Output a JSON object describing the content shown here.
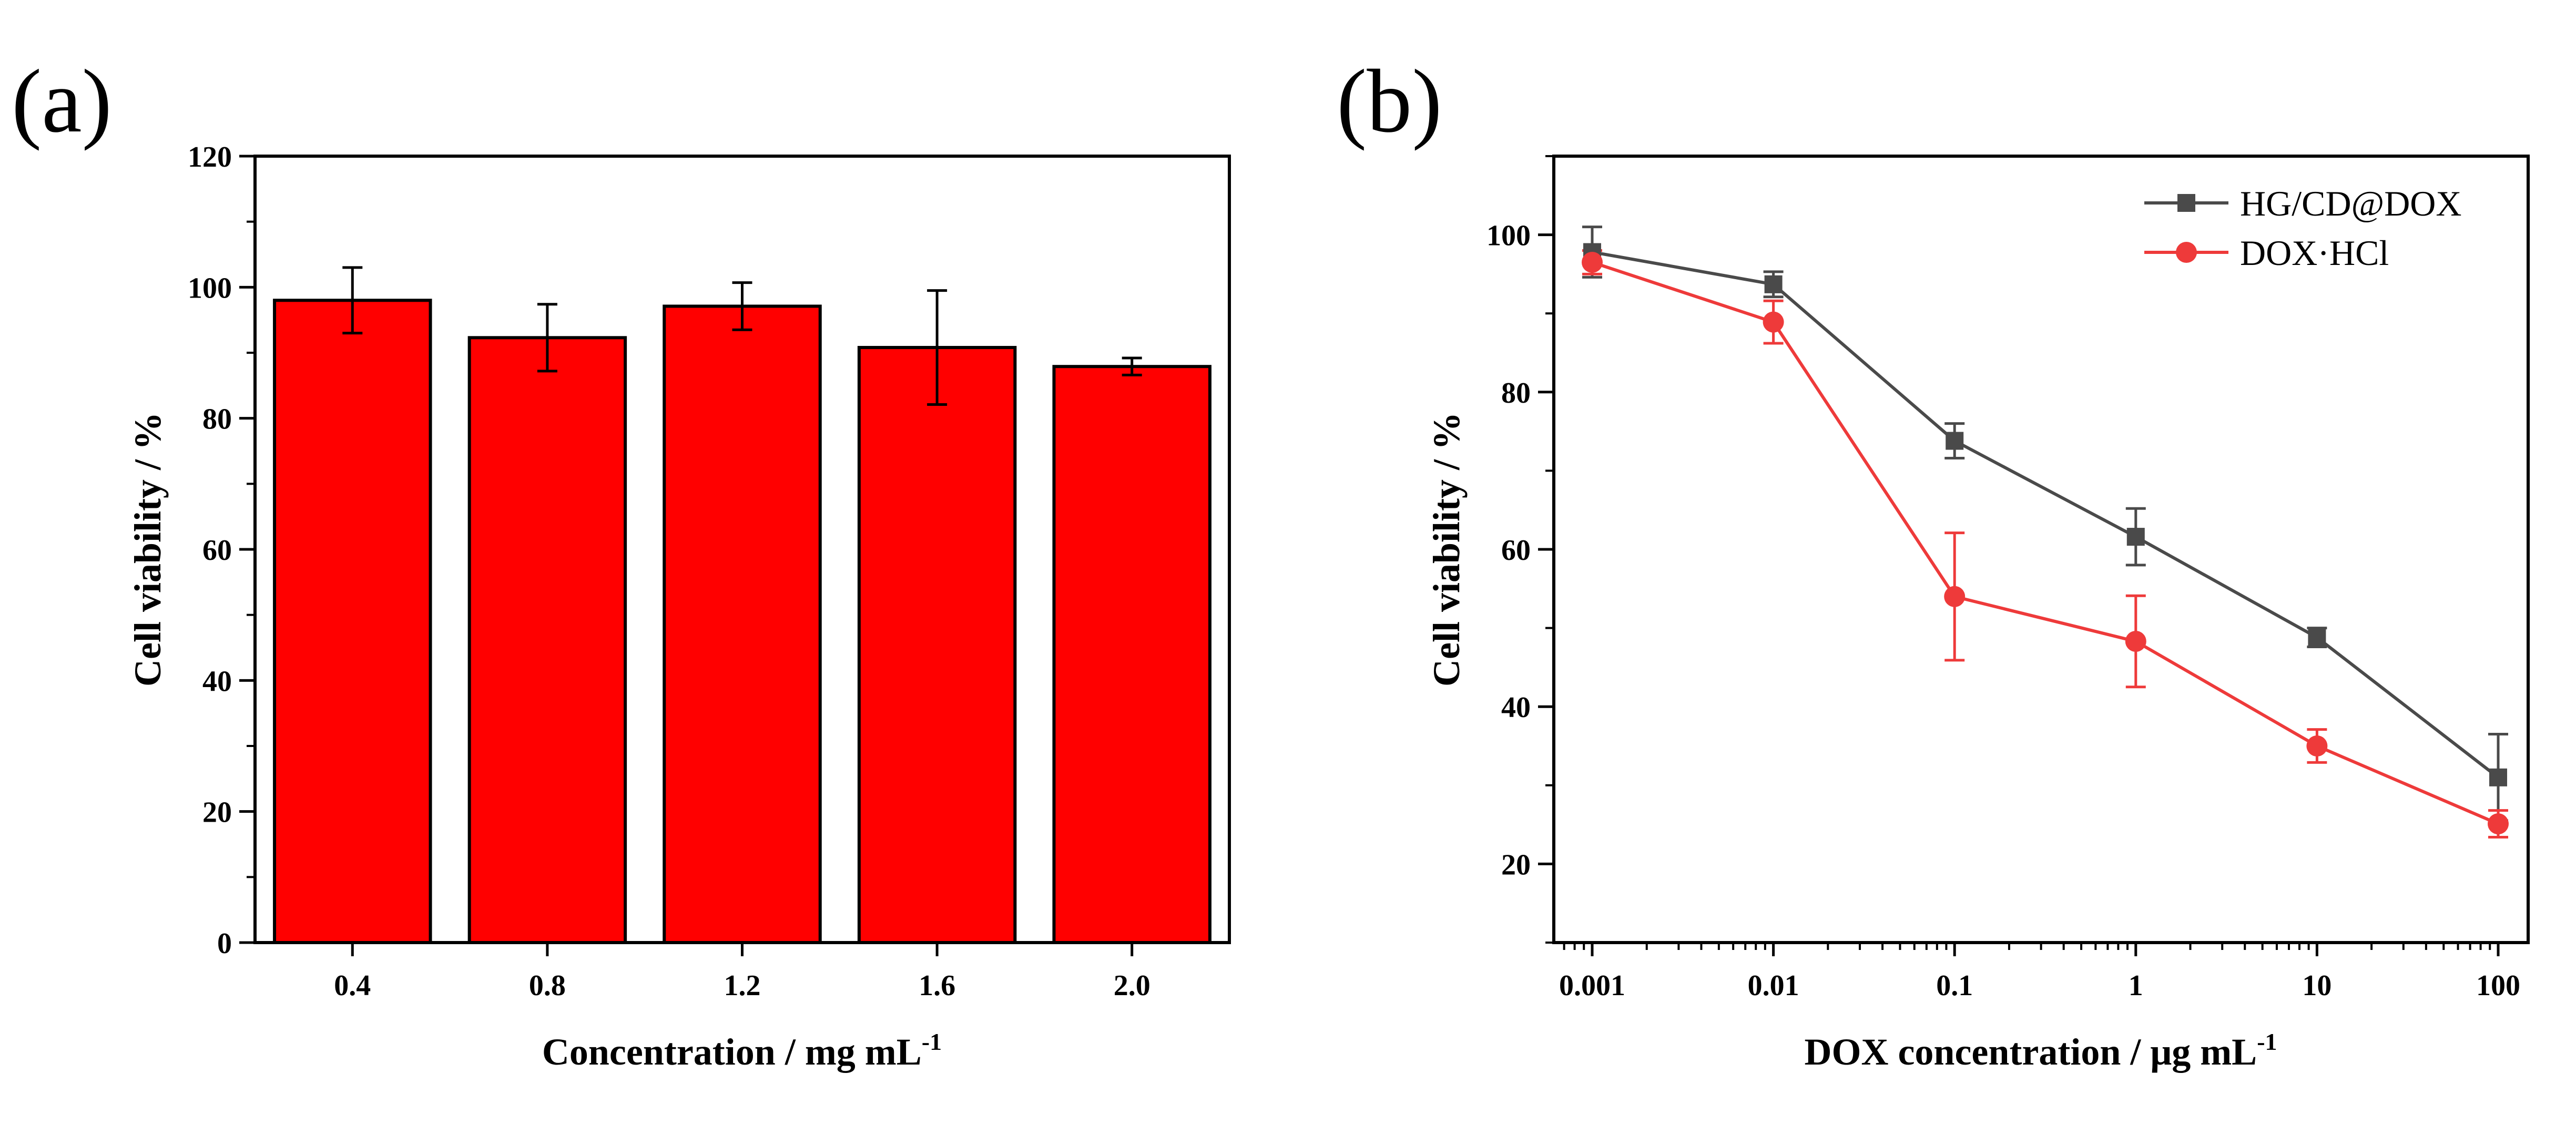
{
  "chart_data": [
    {
      "panel_label": "(a)",
      "type": "bar",
      "categories": [
        "0.4",
        "0.8",
        "1.2",
        "1.6",
        "2.0"
      ],
      "values": [
        98.0,
        92.3,
        97.1,
        90.8,
        87.9
      ],
      "errors": [
        5.0,
        5.1,
        3.6,
        8.7,
        1.3
      ],
      "bar_color": "#ff0000",
      "xlabel": "Concentration / mg mL",
      "xlabel_sup": "-1",
      "ylabel": "Cell viability / %",
      "ylim": [
        0,
        120
      ],
      "yticks": [
        0,
        20,
        40,
        60,
        80,
        100,
        120
      ],
      "grid": false,
      "legend": "none"
    },
    {
      "panel_label": "(b)",
      "type": "line",
      "x_scale": "log",
      "x": [
        0.001,
        0.01,
        0.1,
        1,
        10,
        100
      ],
      "xtick_labels": [
        "0.001",
        "0.01",
        "0.1",
        "1",
        "10",
        "100"
      ],
      "series": [
        {
          "name": "HG/CD@DOX",
          "values": [
            97.8,
            93.7,
            73.8,
            61.6,
            48.8,
            31.0
          ],
          "errors": [
            3.2,
            1.6,
            2.2,
            3.6,
            1.2,
            5.5
          ],
          "color": "#4a4a4a",
          "marker": "square"
        },
        {
          "name": "DOX·HCl",
          "values": [
            96.5,
            88.9,
            54.0,
            48.3,
            35.0,
            25.1
          ],
          "errors": [
            1.5,
            2.7,
            8.1,
            5.8,
            2.1,
            1.7
          ],
          "color": "#ee3a3a",
          "marker": "circle"
        }
      ],
      "xlabel": "DOX concentration / μg mL",
      "xlabel_sup": "-1",
      "ylabel": "Cell viability / %",
      "ylim": [
        10,
        110
      ],
      "yticks": [
        20,
        40,
        60,
        80,
        100
      ],
      "grid": false,
      "legend": "top-right"
    }
  ]
}
